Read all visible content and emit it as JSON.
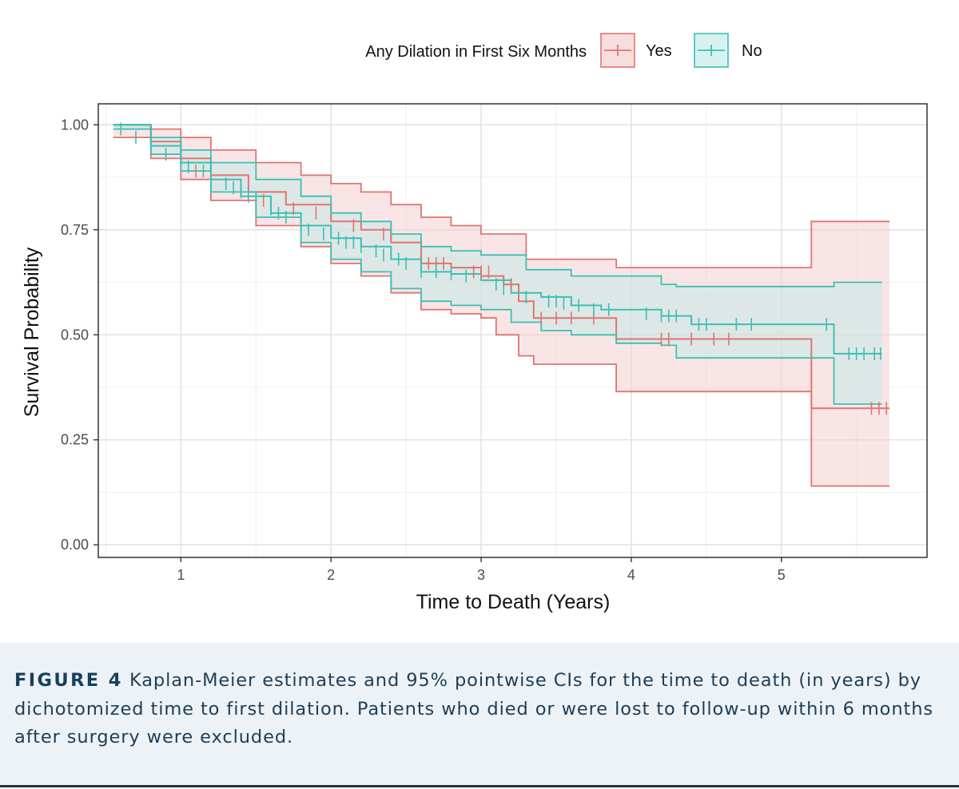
{
  "chart_data": {
    "type": "line",
    "subtype": "kaplan-meier",
    "xlabel": "Time to Death (Years)",
    "ylabel": "Survival Probability",
    "xlim": [
      0.45,
      5.97
    ],
    "ylim": [
      -0.03,
      1.05
    ],
    "x_ticks": [
      1,
      2,
      3,
      4,
      5
    ],
    "x_tick_labels": [
      "1",
      "2",
      "3",
      "4",
      "5"
    ],
    "y_ticks": [
      0,
      0.25,
      0.5,
      0.75,
      1
    ],
    "y_tick_labels": [
      "0.00",
      "0.25",
      "0.50",
      "0.75",
      "1.00"
    ],
    "grid": true,
    "legend": {
      "title": "Any Dilation in First Six Months",
      "position": "top",
      "entries": [
        "Yes",
        "No"
      ]
    },
    "series": [
      {
        "name": "Yes",
        "color": "#e07470",
        "fill": "#f4d0d0",
        "survival": [
          [
            0.55,
            1.0
          ],
          [
            0.8,
            0.96
          ],
          [
            1.0,
            0.92
          ],
          [
            1.2,
            0.88
          ],
          [
            1.45,
            0.84
          ],
          [
            1.7,
            0.81
          ],
          [
            2.0,
            0.77
          ],
          [
            2.2,
            0.75
          ],
          [
            2.4,
            0.72
          ],
          [
            2.6,
            0.67
          ],
          [
            2.8,
            0.66
          ],
          [
            3.0,
            0.64
          ],
          [
            3.15,
            0.62
          ],
          [
            3.25,
            0.58
          ],
          [
            3.35,
            0.54
          ],
          [
            3.85,
            0.54
          ],
          [
            3.9,
            0.49
          ],
          [
            5.2,
            0.49
          ],
          [
            5.2,
            0.325
          ],
          [
            5.72,
            0.325
          ]
        ],
        "upper": [
          [
            0.55,
            1.0
          ],
          [
            0.8,
            0.99
          ],
          [
            1.0,
            0.97
          ],
          [
            1.2,
            0.94
          ],
          [
            1.5,
            0.91
          ],
          [
            1.8,
            0.88
          ],
          [
            2.0,
            0.86
          ],
          [
            2.2,
            0.84
          ],
          [
            2.4,
            0.81
          ],
          [
            2.6,
            0.78
          ],
          [
            2.8,
            0.76
          ],
          [
            3.0,
            0.74
          ],
          [
            3.3,
            0.68
          ],
          [
            3.85,
            0.68
          ],
          [
            3.9,
            0.66
          ],
          [
            5.18,
            0.66
          ],
          [
            5.2,
            0.77
          ],
          [
            5.72,
            0.77
          ]
        ],
        "lower": [
          [
            0.55,
            0.97
          ],
          [
            0.8,
            0.92
          ],
          [
            1.0,
            0.87
          ],
          [
            1.2,
            0.82
          ],
          [
            1.5,
            0.76
          ],
          [
            1.8,
            0.71
          ],
          [
            2.0,
            0.67
          ],
          [
            2.2,
            0.64
          ],
          [
            2.4,
            0.6
          ],
          [
            2.6,
            0.56
          ],
          [
            2.8,
            0.55
          ],
          [
            3.0,
            0.54
          ],
          [
            3.1,
            0.5
          ],
          [
            3.25,
            0.45
          ],
          [
            3.35,
            0.43
          ],
          [
            3.85,
            0.43
          ],
          [
            3.9,
            0.365
          ],
          [
            5.18,
            0.365
          ],
          [
            5.2,
            0.14
          ],
          [
            5.72,
            0.14
          ]
        ],
        "censor_x": [
          1.1,
          1.55,
          1.75,
          1.9,
          2.15,
          2.35,
          2.65,
          2.7,
          2.75,
          2.95,
          3.0,
          3.05,
          3.2,
          3.4,
          3.5,
          3.6,
          3.75,
          4.2,
          4.25,
          4.4,
          4.55,
          4.65,
          5.6,
          5.65,
          5.7
        ],
        "censor_y": [
          0.89,
          0.82,
          0.8,
          0.79,
          0.76,
          0.74,
          0.67,
          0.67,
          0.67,
          0.65,
          0.65,
          0.65,
          0.62,
          0.54,
          0.54,
          0.54,
          0.54,
          0.49,
          0.49,
          0.49,
          0.49,
          0.49,
          0.325,
          0.325,
          0.325
        ]
      },
      {
        "name": "No",
        "color": "#3cbfb4",
        "fill": "#c6ebe8",
        "survival": [
          [
            0.55,
            1.0
          ],
          [
            0.8,
            0.95
          ],
          [
            1.0,
            0.91
          ],
          [
            1.2,
            0.87
          ],
          [
            1.4,
            0.83
          ],
          [
            1.6,
            0.79
          ],
          [
            1.8,
            0.76
          ],
          [
            2.0,
            0.73
          ],
          [
            2.2,
            0.71
          ],
          [
            2.4,
            0.68
          ],
          [
            2.6,
            0.65
          ],
          [
            2.8,
            0.645
          ],
          [
            3.0,
            0.63
          ],
          [
            3.2,
            0.6
          ],
          [
            3.4,
            0.59
          ],
          [
            3.6,
            0.57
          ],
          [
            3.8,
            0.56
          ],
          [
            4.2,
            0.545
          ],
          [
            4.4,
            0.525
          ],
          [
            5.3,
            0.525
          ],
          [
            5.35,
            0.455
          ],
          [
            5.67,
            0.455
          ]
        ],
        "upper": [
          [
            0.55,
            1.0
          ],
          [
            0.8,
            0.97
          ],
          [
            1.0,
            0.94
          ],
          [
            1.2,
            0.91
          ],
          [
            1.5,
            0.87
          ],
          [
            1.8,
            0.83
          ],
          [
            2.0,
            0.79
          ],
          [
            2.2,
            0.77
          ],
          [
            2.4,
            0.74
          ],
          [
            2.6,
            0.71
          ],
          [
            2.8,
            0.7
          ],
          [
            3.0,
            0.69
          ],
          [
            3.3,
            0.655
          ],
          [
            3.6,
            0.64
          ],
          [
            4.2,
            0.62
          ],
          [
            4.3,
            0.615
          ],
          [
            5.3,
            0.615
          ],
          [
            5.35,
            0.625
          ],
          [
            5.67,
            0.625
          ]
        ],
        "lower": [
          [
            0.55,
            0.99
          ],
          [
            0.8,
            0.93
          ],
          [
            1.0,
            0.89
          ],
          [
            1.2,
            0.84
          ],
          [
            1.5,
            0.78
          ],
          [
            1.8,
            0.72
          ],
          [
            2.0,
            0.68
          ],
          [
            2.2,
            0.65
          ],
          [
            2.4,
            0.61
          ],
          [
            2.6,
            0.58
          ],
          [
            2.8,
            0.57
          ],
          [
            3.0,
            0.56
          ],
          [
            3.2,
            0.53
          ],
          [
            3.4,
            0.51
          ],
          [
            3.6,
            0.5
          ],
          [
            3.9,
            0.48
          ],
          [
            4.2,
            0.475
          ],
          [
            4.3,
            0.445
          ],
          [
            5.3,
            0.445
          ],
          [
            5.35,
            0.335
          ],
          [
            5.67,
            0.335
          ]
        ],
        "censor_x": [
          0.6,
          0.7,
          0.8,
          0.9,
          1.0,
          1.05,
          1.15,
          1.2,
          1.3,
          1.35,
          1.4,
          1.45,
          1.5,
          1.6,
          1.65,
          1.7,
          1.8,
          1.85,
          1.95,
          2.05,
          2.1,
          2.15,
          2.2,
          2.3,
          2.35,
          2.45,
          2.5,
          2.6,
          2.7,
          2.8,
          2.9,
          3.1,
          3.15,
          3.3,
          3.45,
          3.5,
          3.55,
          3.65,
          3.75,
          3.85,
          4.1,
          4.2,
          4.25,
          4.3,
          4.45,
          4.5,
          4.7,
          4.8,
          5.3,
          5.45,
          5.5,
          5.55,
          5.62,
          5.66
        ],
        "censor_y": [
          0.99,
          0.97,
          0.95,
          0.93,
          0.91,
          0.9,
          0.89,
          0.87,
          0.86,
          0.85,
          0.84,
          0.83,
          0.82,
          0.8,
          0.79,
          0.78,
          0.76,
          0.75,
          0.74,
          0.73,
          0.72,
          0.72,
          0.71,
          0.7,
          0.69,
          0.68,
          0.67,
          0.65,
          0.65,
          0.645,
          0.64,
          0.62,
          0.61,
          0.59,
          0.58,
          0.58,
          0.575,
          0.57,
          0.56,
          0.56,
          0.55,
          0.545,
          0.545,
          0.545,
          0.525,
          0.525,
          0.525,
          0.525,
          0.525,
          0.455,
          0.455,
          0.455,
          0.455,
          0.455
        ]
      }
    ]
  },
  "caption": {
    "label": "FIGURE 4",
    "text": "Kaplan-Meier estimates and 95% pointwise CIs for the time to death (in years) by dichotomized time to first dilation. Patients who died or were lost to follow-up within 6 months after surgery were excluded."
  }
}
